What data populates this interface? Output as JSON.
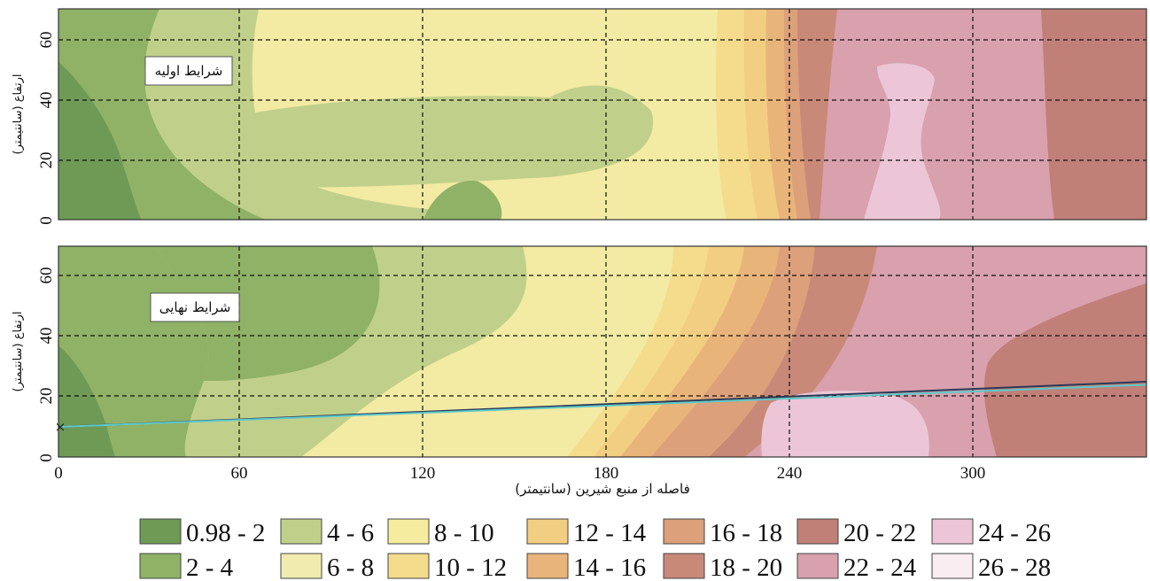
{
  "chart_data": [
    {
      "type": "heatmap",
      "panel_label": "شرایط اولیه",
      "ylabel": "ارتفاع (سانتیمتر)",
      "xlabel": "",
      "xlim": [
        0,
        360
      ],
      "ylim": [
        0,
        70
      ],
      "grid": true,
      "xticks": [],
      "yticks": [
        "0",
        "20",
        "40",
        "60"
      ]
    },
    {
      "type": "heatmap",
      "panel_label": "شرایط نهایی",
      "ylabel": "ارتفاع (سانتیمتر)",
      "xlabel": "فاصله از منبع شیرین (سانتیمتر)",
      "xlim": [
        0,
        360
      ],
      "ylim": [
        0,
        70
      ],
      "grid": true,
      "xticks": [
        "0",
        "60",
        "120",
        "180",
        "240",
        "300"
      ],
      "yticks": [
        "0",
        "20",
        "40",
        "60"
      ],
      "lines": [
        {
          "color": "#2b3a55",
          "x": [
            0,
            360
          ],
          "y": [
            10,
            25
          ]
        },
        {
          "color": "#5fc8c8",
          "x": [
            0,
            360
          ],
          "y": [
            10,
            24
          ]
        }
      ],
      "marker": {
        "x": 0,
        "y": 10,
        "symbol": "×"
      }
    }
  ],
  "legend": {
    "placement": "bottom",
    "items": [
      {
        "label": "0.98 - 2",
        "color": "#6e9a56"
      },
      {
        "label": "2 - 4",
        "color": "#8fb266"
      },
      {
        "label": "4 - 6",
        "color": "#c0d08a"
      },
      {
        "label": "6 - 8",
        "color": "#f0ecb0"
      },
      {
        "label": "8 - 10",
        "color": "#f5eca0"
      },
      {
        "label": "10 - 12",
        "color": "#f4dc8c"
      },
      {
        "label": "12 - 14",
        "color": "#f2ce82"
      },
      {
        "label": "14 - 16",
        "color": "#e9b47a"
      },
      {
        "label": "16 - 18",
        "color": "#dca07a"
      },
      {
        "label": "18 - 20",
        "color": "#c98978"
      },
      {
        "label": "20 - 22",
        "color": "#c08078"
      },
      {
        "label": "22 - 24",
        "color": "#d9a0ae"
      },
      {
        "label": "24 - 26",
        "color": "#ecc6d6"
      },
      {
        "label": "26 - 28",
        "color": "#f9edf2"
      }
    ]
  }
}
